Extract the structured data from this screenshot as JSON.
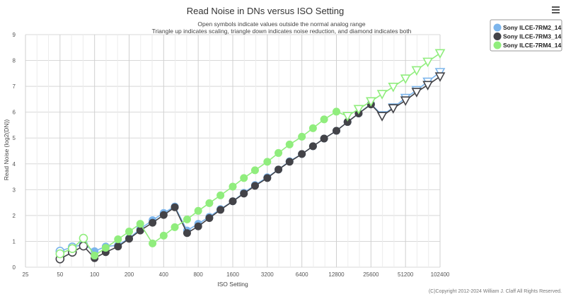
{
  "chart_data": {
    "type": "line",
    "title": "Read Noise in DNs versus ISO Setting",
    "subtitle_lines": [
      "Open symbols indicate values outside the normal analog range",
      "Triangle up indicates scaling, triangle down indicates noise reduction, and diamond indicates both"
    ],
    "xlabel": "ISO Setting",
    "ylabel": "Read Noise (log2(DN))",
    "x_scale": "log2",
    "xlim": [
      25,
      102400
    ],
    "ylim": [
      0,
      9
    ],
    "x_ticks": [
      25,
      50,
      100,
      200,
      400,
      800,
      1600,
      3200,
      6400,
      12800,
      25600,
      51200,
      102400
    ],
    "y_ticks": [
      0,
      1,
      2,
      3,
      4,
      5,
      6,
      7,
      8,
      9
    ],
    "credit": "(C)Copyright 2012-2024 William J. Claff All Rights Reserved.",
    "legend_position": "top-right",
    "series": [
      {
        "name": "Sony ILCE-7RM2_14",
        "color": "#7cb5ec",
        "points": [
          {
            "iso": 50,
            "y": 0.62,
            "m": "oc"
          },
          {
            "iso": 64,
            "y": 0.78,
            "m": "oc"
          },
          {
            "iso": 80,
            "y": 0.88,
            "m": "oc"
          },
          {
            "iso": 100,
            "y": 0.62,
            "m": "c"
          },
          {
            "iso": 125,
            "y": 0.8,
            "m": "c"
          },
          {
            "iso": 160,
            "y": 0.85,
            "m": "c"
          },
          {
            "iso": 200,
            "y": 1.12,
            "m": "c"
          },
          {
            "iso": 250,
            "y": 1.48,
            "m": "c"
          },
          {
            "iso": 320,
            "y": 1.82,
            "m": "c"
          },
          {
            "iso": 400,
            "y": 2.1,
            "m": "c"
          },
          {
            "iso": 500,
            "y": 2.35,
            "m": "c"
          },
          {
            "iso": 640,
            "y": 1.42,
            "m": "c"
          },
          {
            "iso": 800,
            "y": 1.68,
            "m": "c"
          },
          {
            "iso": 1000,
            "y": 1.95,
            "m": "c"
          },
          {
            "iso": 1250,
            "y": 2.25,
            "m": "c"
          },
          {
            "iso": 1600,
            "y": 2.55,
            "m": "c"
          },
          {
            "iso": 2000,
            "y": 2.88,
            "m": "c"
          },
          {
            "iso": 2500,
            "y": 3.18,
            "m": "c"
          },
          {
            "iso": 3200,
            "y": 3.48,
            "m": "c"
          },
          {
            "iso": 4000,
            "y": 3.78,
            "m": "c"
          },
          {
            "iso": 5000,
            "y": 4.1,
            "m": "c"
          },
          {
            "iso": 6400,
            "y": 4.38,
            "m": "c"
          },
          {
            "iso": 8000,
            "y": 4.68,
            "m": "c"
          },
          {
            "iso": 10000,
            "y": 4.98,
            "m": "c"
          },
          {
            "iso": 12800,
            "y": 5.28,
            "m": "c"
          },
          {
            "iso": 16000,
            "y": 5.62,
            "m": "c"
          },
          {
            "iso": 20000,
            "y": 5.95,
            "m": "c"
          },
          {
            "iso": 25600,
            "y": 6.32,
            "m": "c"
          },
          {
            "iso": 32000,
            "y": 5.88,
            "m": "otd"
          },
          {
            "iso": 40000,
            "y": 6.18,
            "m": "otd"
          },
          {
            "iso": 51200,
            "y": 6.55,
            "m": "otd"
          },
          {
            "iso": 64000,
            "y": 6.85,
            "m": "otd"
          },
          {
            "iso": 80000,
            "y": 7.18,
            "m": "otd"
          },
          {
            "iso": 102400,
            "y": 7.55,
            "m": "otd"
          }
        ]
      },
      {
        "name": "Sony ILCE-7RM3_14",
        "color": "#434348",
        "points": [
          {
            "iso": 50,
            "y": 0.32,
            "m": "oc"
          },
          {
            "iso": 64,
            "y": 0.58,
            "m": "oc"
          },
          {
            "iso": 80,
            "y": 0.82,
            "m": "oc"
          },
          {
            "iso": 100,
            "y": 0.35,
            "m": "c"
          },
          {
            "iso": 125,
            "y": 0.58,
            "m": "c"
          },
          {
            "iso": 160,
            "y": 0.8,
            "m": "c"
          },
          {
            "iso": 200,
            "y": 1.1,
            "m": "c"
          },
          {
            "iso": 250,
            "y": 1.42,
            "m": "c"
          },
          {
            "iso": 320,
            "y": 1.72,
            "m": "c"
          },
          {
            "iso": 400,
            "y": 2.02,
            "m": "c"
          },
          {
            "iso": 500,
            "y": 2.32,
            "m": "c"
          },
          {
            "iso": 640,
            "y": 1.32,
            "m": "c"
          },
          {
            "iso": 800,
            "y": 1.58,
            "m": "c"
          },
          {
            "iso": 1000,
            "y": 1.9,
            "m": "c"
          },
          {
            "iso": 1250,
            "y": 2.22,
            "m": "c"
          },
          {
            "iso": 1600,
            "y": 2.55,
            "m": "c"
          },
          {
            "iso": 2000,
            "y": 2.85,
            "m": "c"
          },
          {
            "iso": 2500,
            "y": 3.15,
            "m": "c"
          },
          {
            "iso": 3200,
            "y": 3.45,
            "m": "c"
          },
          {
            "iso": 4000,
            "y": 3.78,
            "m": "c"
          },
          {
            "iso": 5000,
            "y": 4.08,
            "m": "c"
          },
          {
            "iso": 6400,
            "y": 4.38,
            "m": "c"
          },
          {
            "iso": 8000,
            "y": 4.68,
            "m": "c"
          },
          {
            "iso": 10000,
            "y": 4.98,
            "m": "c"
          },
          {
            "iso": 12800,
            "y": 5.28,
            "m": "c"
          },
          {
            "iso": 16000,
            "y": 5.62,
            "m": "c"
          },
          {
            "iso": 20000,
            "y": 5.95,
            "m": "c"
          },
          {
            "iso": 25600,
            "y": 6.3,
            "m": "c"
          },
          {
            "iso": 32000,
            "y": 5.85,
            "m": "otd"
          },
          {
            "iso": 40000,
            "y": 6.15,
            "m": "otd"
          },
          {
            "iso": 51200,
            "y": 6.45,
            "m": "otd"
          },
          {
            "iso": 64000,
            "y": 6.78,
            "m": "otd"
          },
          {
            "iso": 80000,
            "y": 7.05,
            "m": "otd"
          },
          {
            "iso": 102400,
            "y": 7.38,
            "m": "otd"
          }
        ]
      },
      {
        "name": "Sony ILCE-7RM4_14",
        "color": "#90ed7d",
        "points": [
          {
            "iso": 50,
            "y": 0.52,
            "m": "oc"
          },
          {
            "iso": 64,
            "y": 0.72,
            "m": "oc"
          },
          {
            "iso": 80,
            "y": 1.12,
            "m": "oc"
          },
          {
            "iso": 100,
            "y": 0.45,
            "m": "c"
          },
          {
            "iso": 125,
            "y": 0.75,
            "m": "c"
          },
          {
            "iso": 160,
            "y": 1.08,
            "m": "c"
          },
          {
            "iso": 200,
            "y": 1.38,
            "m": "c"
          },
          {
            "iso": 250,
            "y": 1.68,
            "m": "c"
          },
          {
            "iso": 320,
            "y": 0.92,
            "m": "c"
          },
          {
            "iso": 400,
            "y": 1.22,
            "m": "c"
          },
          {
            "iso": 500,
            "y": 1.55,
            "m": "c"
          },
          {
            "iso": 640,
            "y": 1.85,
            "m": "c"
          },
          {
            "iso": 800,
            "y": 2.18,
            "m": "c"
          },
          {
            "iso": 1000,
            "y": 2.48,
            "m": "c"
          },
          {
            "iso": 1250,
            "y": 2.78,
            "m": "c"
          },
          {
            "iso": 1600,
            "y": 3.12,
            "m": "c"
          },
          {
            "iso": 2000,
            "y": 3.45,
            "m": "c"
          },
          {
            "iso": 2500,
            "y": 3.75,
            "m": "c"
          },
          {
            "iso": 3200,
            "y": 4.08,
            "m": "c"
          },
          {
            "iso": 4000,
            "y": 4.42,
            "m": "c"
          },
          {
            "iso": 5000,
            "y": 4.75,
            "m": "c"
          },
          {
            "iso": 6400,
            "y": 5.05,
            "m": "c"
          },
          {
            "iso": 8000,
            "y": 5.38,
            "m": "c"
          },
          {
            "iso": 10000,
            "y": 5.72,
            "m": "c"
          },
          {
            "iso": 12800,
            "y": 6.02,
            "m": "c"
          },
          {
            "iso": 16000,
            "y": 5.85,
            "m": "otd"
          },
          {
            "iso": 20000,
            "y": 6.12,
            "m": "otd"
          },
          {
            "iso": 25600,
            "y": 6.42,
            "m": "otd"
          },
          {
            "iso": 32000,
            "y": 6.7,
            "m": "otd"
          },
          {
            "iso": 40000,
            "y": 6.98,
            "m": "otd"
          },
          {
            "iso": 51200,
            "y": 7.3,
            "m": "otd"
          },
          {
            "iso": 64000,
            "y": 7.62,
            "m": "otd"
          },
          {
            "iso": 80000,
            "y": 7.95,
            "m": "otd"
          },
          {
            "iso": 102400,
            "y": 8.28,
            "m": "otd"
          }
        ]
      }
    ]
  }
}
